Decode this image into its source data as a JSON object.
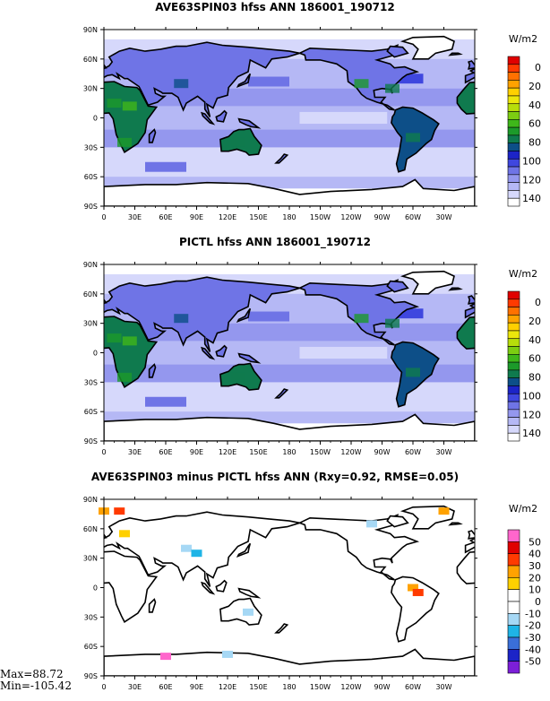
{
  "chart_data": [
    {
      "type": "heatmap",
      "title": "AVE63SPIN03 hfss ANN 186001_190712",
      "units": "W/m2",
      "x_ticks": [
        "0",
        "30E",
        "60E",
        "90E",
        "120E",
        "150E",
        "180",
        "150W",
        "120W",
        "90W",
        "60W",
        "30W"
      ],
      "y_ticks": [
        "90N",
        "60N",
        "30N",
        "0",
        "30S",
        "60S",
        "90S"
      ],
      "colorbar_labels": [
        "0",
        "20",
        "40",
        "60",
        "80",
        "100",
        "120",
        "140"
      ],
      "colorbar_colors": [
        "#ffffff",
        "#d6d8fb",
        "#b5b8f5",
        "#9497ee",
        "#6f74e6",
        "#3f47df",
        "#1c24c7",
        "#0d4f88",
        "#0f7a4e",
        "#1c9a2a",
        "#3fb71a",
        "#7ccd12",
        "#b7dd0b",
        "#ece60c",
        "#ffd000",
        "#ffa200",
        "#ff7100",
        "#ff3a00",
        "#e00000"
      ]
    },
    {
      "type": "heatmap",
      "title": "PICTL hfss ANN 186001_190712",
      "units": "W/m2",
      "x_ticks": [
        "0",
        "30E",
        "60E",
        "90E",
        "120E",
        "150E",
        "180",
        "150W",
        "120W",
        "90W",
        "60W",
        "30W"
      ],
      "y_ticks": [
        "90N",
        "60N",
        "30N",
        "0",
        "30S",
        "60S",
        "90S"
      ],
      "colorbar_labels": [
        "0",
        "20",
        "40",
        "60",
        "80",
        "100",
        "120",
        "140"
      ],
      "colorbar_colors": [
        "#ffffff",
        "#d6d8fb",
        "#b5b8f5",
        "#9497ee",
        "#6f74e6",
        "#3f47df",
        "#1c24c7",
        "#0d4f88",
        "#0f7a4e",
        "#1c9a2a",
        "#3fb71a",
        "#7ccd12",
        "#b7dd0b",
        "#ece60c",
        "#ffd000",
        "#ffa200",
        "#ff7100",
        "#ff3a00",
        "#e00000"
      ]
    },
    {
      "type": "heatmap",
      "title": "AVE63SPIN03 minus PICTL hfss ANN (Rxy=0.92, RMSE=0.05)",
      "units": "W/m2",
      "x_ticks": [
        "0",
        "30E",
        "60E",
        "90E",
        "120E",
        "150E",
        "180",
        "150W",
        "120W",
        "90W",
        "60W",
        "30W"
      ],
      "y_ticks": [
        "90N",
        "60N",
        "30N",
        "0",
        "30S",
        "60S",
        "90S"
      ],
      "colorbar_labels": [
        "50",
        "40",
        "30",
        "20",
        "10",
        "0",
        "-10",
        "-20",
        "-30",
        "-40",
        "-50"
      ],
      "colorbar_colors": [
        "#ff66cc",
        "#e00000",
        "#ff3a00",
        "#ffa200",
        "#ffd000",
        "#ffffff",
        "#ffffff",
        "#a6d8f5",
        "#1fb4e6",
        "#3a6fd8",
        "#1c24c7",
        "#7c1fd8"
      ],
      "max_label": "Max=88.72",
      "min_label": "Min=-105.42"
    }
  ]
}
